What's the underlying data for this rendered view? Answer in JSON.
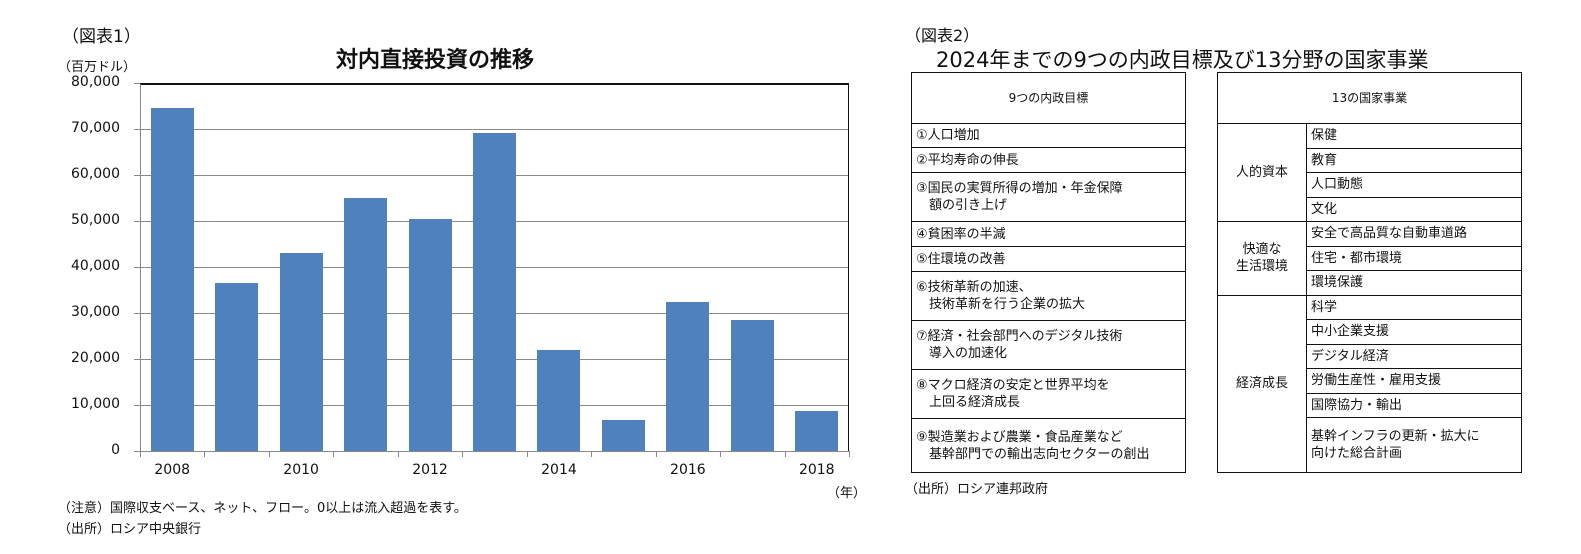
{
  "figure1": {
    "label": "（図表1）",
    "title": "対内直接投資の推移",
    "unit": "（百万ドル）",
    "x_unit": "（年）",
    "note": "（注意）国際収支ベース、ネット、フロー。0以上は流入超過を表す。",
    "source": "（出所）ロシア中央銀行",
    "bar_color": "#4F81BD",
    "y_ticks": [
      "80,000",
      "70,000",
      "60,000",
      "50,000",
      "40,000",
      "30,000",
      "20,000",
      "10,000",
      "0"
    ],
    "x_ticks": [
      "2008",
      "2010",
      "2012",
      "2014",
      "2016",
      "2018"
    ]
  },
  "chart_data": {
    "type": "bar",
    "title": "対内直接投資の推移",
    "xlabel": "（年）",
    "ylabel": "（百万ドル）",
    "categories": [
      "2008",
      "2009",
      "2010",
      "2011",
      "2012",
      "2013",
      "2014",
      "2015",
      "2016",
      "2017",
      "2018"
    ],
    "values": [
      74600,
      36500,
      43100,
      55000,
      50500,
      69100,
      22000,
      6800,
      32400,
      28500,
      8600
    ],
    "ylim": [
      0,
      80000
    ],
    "y_tick_step": 10000,
    "x_tick_labels_shown": [
      "2008",
      "2010",
      "2012",
      "2014",
      "2016",
      "2018"
    ],
    "grid": true,
    "legend": null,
    "color": "#4F81BD"
  },
  "figure2": {
    "label": "（図表2）",
    "title": "2024年までの9つの内政目標及び13分野の国家事業",
    "source": "（出所）ロシア連邦政府",
    "left_table": {
      "header": "9つの内政目標",
      "rows": [
        {
          "line1": "①人口増加",
          "line2": ""
        },
        {
          "line1": "②平均寿命の伸長",
          "line2": ""
        },
        {
          "line1": "③国民の実質所得の増加・年金保障",
          "line2": "　額の引き上げ"
        },
        {
          "line1": "④貧困率の半減",
          "line2": ""
        },
        {
          "line1": "⑤住環境の改善",
          "line2": ""
        },
        {
          "line1": "⑥技術革新の加速、",
          "line2": "　技術革新を行う企業の拡大"
        },
        {
          "line1": "⑦経済・社会部門へのデジタル技術",
          "line2": "　導入の加速化"
        },
        {
          "line1": "⑧マクロ経済の安定と世界平均を",
          "line2": "　上回る経済成長"
        },
        {
          "line1": "⑨製造業および農業・食品産業など",
          "line2": "　基幹部門での輸出志向セクターの創出"
        }
      ]
    },
    "right_table": {
      "header": "13の国家事業",
      "groups": [
        {
          "name_line1": "人的資本",
          "name_line2": "",
          "items": [
            "保健",
            "教育",
            "人口動態",
            "文化"
          ]
        },
        {
          "name_line1": "快適な",
          "name_line2": "生活環境",
          "items": [
            "安全で高品質な自動車道路",
            "住宅・都市環境",
            "環境保護"
          ]
        },
        {
          "name_line1": "経済成長",
          "name_line2": "",
          "items": [
            "科学",
            "中小企業支援",
            "デジタル経済",
            "労働生産性・雇用支援",
            "国際協力・輸出",
            "基幹インフラの更新・拡大に",
            "向けた総合計画"
          ]
        }
      ]
    }
  }
}
